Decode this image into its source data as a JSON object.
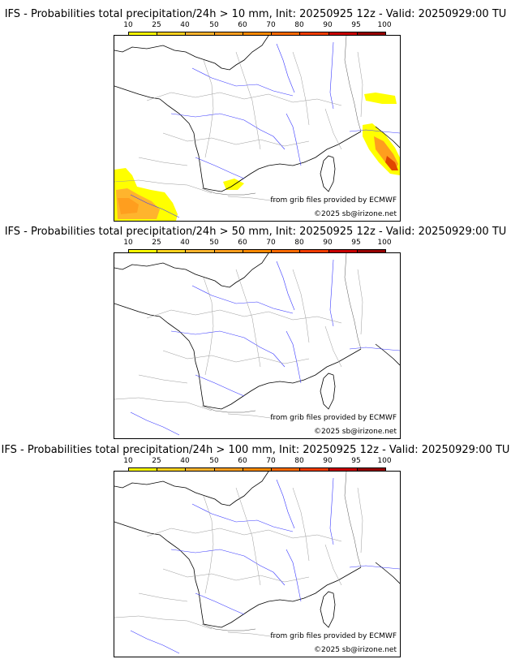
{
  "legend": {
    "labels": [
      "10",
      "25",
      "40",
      "50",
      "60",
      "70",
      "80",
      "90",
      "95",
      "100"
    ],
    "colors": [
      "#ffff00",
      "#ffd21e",
      "#ffb42d",
      "#ff9e1e",
      "#ff8a00",
      "#ff6a00",
      "#f03c00",
      "#c80000",
      "#960000",
      "#5a0000"
    ]
  },
  "panels": [
    {
      "title": "IFS - Probabilities total precipitation/24h > 10 mm, Init: 20250925 12z - Valid: 20250929:00 TU",
      "source_text": "from grib files provided by ECMWF",
      "copyright": "©2025 sb@irizone.net"
    },
    {
      "title": "IFS - Probabilities total precipitation/24h > 50 mm, Init: 20250925 12z - Valid: 20250929:00 TU",
      "source_text": "from grib files provided by ECMWF",
      "copyright": "©2025 sb@irizone.net"
    },
    {
      "title": "IFS - Probabilities total precipitation/24h > 100 mm, Init: 20250925 12z - Valid: 20250929:00 TU",
      "source_text": "from grib files provided by ECMWF",
      "copyright": "©2025 sb@irizone.net"
    }
  ]
}
